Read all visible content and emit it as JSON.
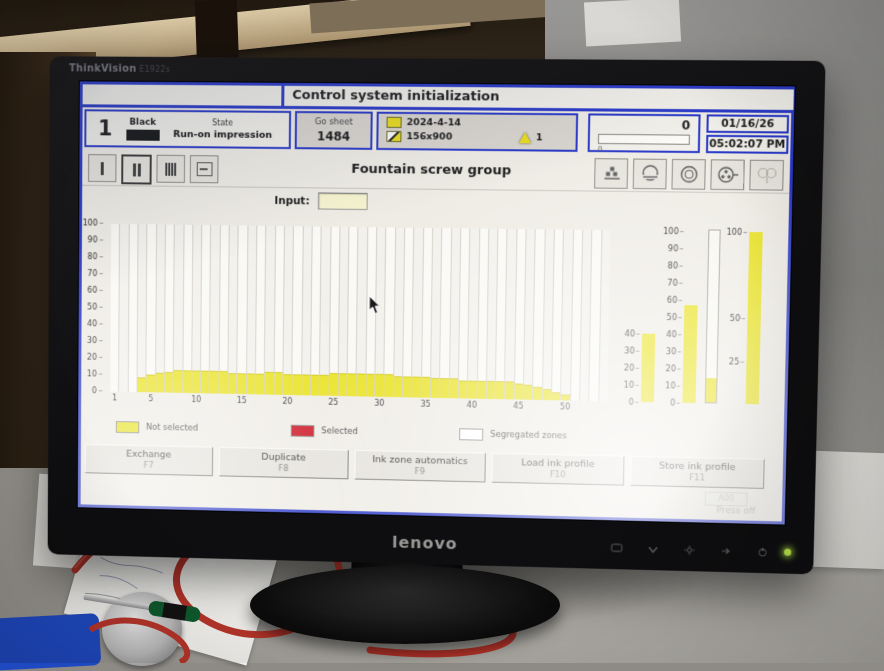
{
  "scene": {
    "monitor_brand": "ThinkVision",
    "monitor_model": "E1922s",
    "monitor_logo": "lenovo",
    "monitor_controls": [
      "input-source-icon",
      "down-arrow-icon",
      "brightness-icon",
      "menu-arrow-icon",
      "power-icon",
      "power-led"
    ]
  },
  "titlebar": {
    "title": "Control system initialization"
  },
  "status": {
    "unit_number": "1",
    "ink_name": "Black",
    "state_label": "State",
    "state_value": "Run-on impression",
    "go_sheet_label": "Go sheet",
    "go_sheet_value": "1484",
    "job_date": "2024-4-14",
    "job_size": "156x900",
    "warning_count": "1",
    "counter_value": "0",
    "counter_sub": "0",
    "date": "01/16/26",
    "time": "05:02:07 PM"
  },
  "toolbar": {
    "title": "Fountain screw group",
    "left_icons": [
      "single-zone-icon",
      "dual-zone-icon",
      "multi-zone-icon",
      "zone-profile-icon"
    ],
    "selected_left_index": 1,
    "right_icons": [
      "ink-unit-dots-icon",
      "cylinder-open-icon",
      "cylinder-closed-icon",
      "cylinder-register-icon",
      "cylinder-pair-icon"
    ]
  },
  "input": {
    "label": "Input:",
    "value": ""
  },
  "chart_data": {
    "type": "bar",
    "title": "Fountain screw group ink zones",
    "ylim": [
      0,
      100
    ],
    "y_ticks": [
      "100",
      "90",
      "80",
      "70",
      "60",
      "50",
      "40",
      "30",
      "20",
      "10",
      "0"
    ],
    "x_ticks": [
      {
        "zone": 1,
        "label": "1"
      },
      {
        "zone": 5,
        "label": "5"
      },
      {
        "zone": 10,
        "label": "10"
      },
      {
        "zone": 15,
        "label": "15"
      },
      {
        "zone": 20,
        "label": "20"
      },
      {
        "zone": 25,
        "label": "25"
      },
      {
        "zone": 30,
        "label": "30"
      },
      {
        "zone": 35,
        "label": "35"
      },
      {
        "zone": 40,
        "label": "40"
      },
      {
        "zone": 45,
        "label": "45"
      },
      {
        "zone": 50,
        "label": "50"
      }
    ],
    "values": [
      0,
      0,
      0,
      8,
      10,
      11,
      12,
      13,
      13,
      13,
      13,
      13,
      13,
      12,
      12,
      12,
      12,
      13,
      13,
      12,
      12,
      12,
      12,
      12,
      13,
      13,
      13,
      13,
      13,
      13,
      13,
      12,
      12,
      12,
      12,
      11,
      11,
      11,
      10,
      10,
      10,
      10,
      10,
      10,
      9,
      8,
      7,
      6,
      4,
      3,
      0,
      0,
      0,
      0
    ],
    "bar_color": "#e9e21d"
  },
  "gauges": [
    {
      "id": "a",
      "ticks": [
        40,
        30,
        20,
        10,
        0
      ],
      "scale_max": 40,
      "value": 40,
      "outlined": false
    },
    {
      "id": "b",
      "ticks": [
        100,
        90,
        80,
        70,
        60,
        50,
        40,
        30,
        20,
        10,
        0
      ],
      "scale_max": 100,
      "value": 57,
      "outlined": false
    },
    {
      "id": "c",
      "ticks": [],
      "scale_max": 100,
      "value": 14,
      "outlined": true
    },
    {
      "id": "d",
      "ticks": [
        100,
        50,
        25
      ],
      "scale_max": 100,
      "value": 100,
      "outlined": false
    }
  ],
  "legend": [
    {
      "label": "Not selected",
      "color": "#e9e21d"
    },
    {
      "label": "Selected",
      "color": "#cc1120"
    },
    {
      "label": "Segregated zones",
      "color": "#ffffff"
    }
  ],
  "buttons": [
    {
      "label": "Exchange",
      "key": "F7"
    },
    {
      "label": "Duplicate",
      "key": "F8"
    },
    {
      "label": "Ink zone automatics",
      "key": "F9"
    },
    {
      "label": "Load ink profile",
      "key": "F10"
    },
    {
      "label": "Store ink profile",
      "key": "F11"
    }
  ],
  "footer": {
    "aux_button": "A00",
    "press_state": "Press off"
  },
  "colors": {
    "ui_blue": "#2b3ac8",
    "bar_yellow": "#e9e21d",
    "selected_red": "#cc1120",
    "screen_bg": "#efece5"
  }
}
